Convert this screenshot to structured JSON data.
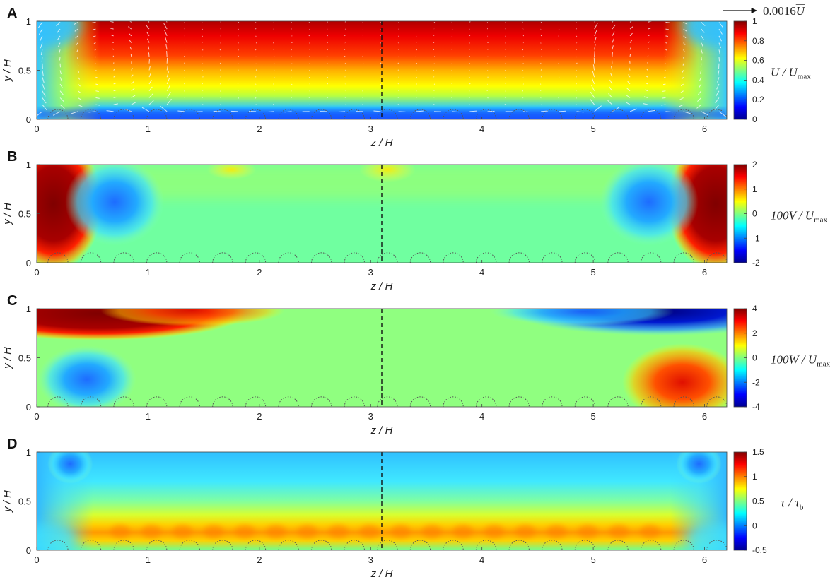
{
  "chart_data": [
    {
      "type": "heatmap",
      "panel_label": "A",
      "xlabel": "z / H",
      "ylabel": "y / H",
      "xlim": [
        0,
        6.2
      ],
      "ylim": [
        0,
        1
      ],
      "xticks": [
        "0",
        "1",
        "2",
        "3",
        "4",
        "5",
        "6"
      ],
      "yticks": [
        "0",
        "0.5",
        "1"
      ],
      "colorbar": {
        "label_main": "U / U",
        "label_sub": "max",
        "clim": [
          0,
          1
        ],
        "ticks": [
          "0",
          "0.2",
          "0.4",
          "0.6",
          "0.8",
          "1"
        ],
        "colormap": "jet"
      },
      "vector_scale_label": "0.0016",
      "vector_scale_symbol": "U",
      "centerline_z": 3.1,
      "field": "streamwise velocity: core 0.9–1.0 near y/H≈0.6–1 across 0.4<z/H<5.8, decreasing to ≈0.1 at bed (y/H≈0) and ≈0.2–0.4 at side walls; secondary-flow vectors overlaid"
    },
    {
      "type": "heatmap",
      "panel_label": "B",
      "xlabel": "z / H",
      "ylabel": "y / H",
      "xlim": [
        0,
        6.2
      ],
      "ylim": [
        0,
        1
      ],
      "xticks": [
        "0",
        "1",
        "2",
        "3",
        "4",
        "5",
        "6"
      ],
      "yticks": [
        "0",
        "0.5",
        "1"
      ],
      "colorbar": {
        "label_main": "100V / U",
        "label_sub": "max",
        "clim": [
          -2,
          2
        ],
        "ticks": [
          "-2",
          "-1",
          "0",
          "1",
          "2"
        ],
        "colormap": "jet"
      },
      "centerline_z": 3.1,
      "field": "vertical velocity: ≈+2 near both side walls (z/H<0.3 and z/H>5.9, 0.2<y/H<1), ≈-1 cells at z/H≈0.7 and z/H≈5.5 (y/H≈0.6), near 0 elsewhere"
    },
    {
      "type": "heatmap",
      "panel_label": "C",
      "xlabel": "z / H",
      "ylabel": "y / H",
      "xlim": [
        0,
        6.2
      ],
      "ylim": [
        0,
        1
      ],
      "xticks": [
        "0",
        "1",
        "2",
        "3",
        "4",
        "5",
        "6"
      ],
      "yticks": [
        "0",
        "0.5",
        "1"
      ],
      "colorbar": {
        "label_main": "100W / U",
        "label_sub": "max",
        "clim": [
          -4,
          4
        ],
        "ticks": [
          "-4",
          "-2",
          "0",
          "2",
          "4"
        ],
        "colormap": "jet"
      },
      "centerline_z": 3.1,
      "field": "spanwise velocity: ≈+4 band near free surface z/H 0–1.5, ≈-4 band near surface z/H 4.5–6.2, ≈-1.5 near bed at z/H≈0.4, ≈+3 near bed at z/H≈5.8, near 0 in centre"
    },
    {
      "type": "heatmap",
      "panel_label": "D",
      "xlabel": "z / H",
      "ylabel": "y / H",
      "xlim": [
        0,
        6.2
      ],
      "ylim": [
        0,
        1
      ],
      "xticks": [
        "0",
        "1",
        "2",
        "3",
        "4",
        "5",
        "6"
      ],
      "yticks": [
        "0",
        "0.5",
        "1"
      ],
      "colorbar": {
        "label_main": "τ / τ",
        "label_sub": "b",
        "clim": [
          -0.5,
          1.5
        ],
        "ticks": [
          "-0.5",
          "0",
          "0.5",
          "1",
          "1.5"
        ],
        "colormap": "jet"
      },
      "centerline_z": 3.1,
      "field": "Reynolds shear stress: maximum ≈1.1 in band y/H≈0.15–0.25 across 0.4<z/H<5.8, decreasing to ≈0.2 near surface, ≈-0.2 in top corners near z/H≈0.3 and z/H≈6"
    }
  ]
}
